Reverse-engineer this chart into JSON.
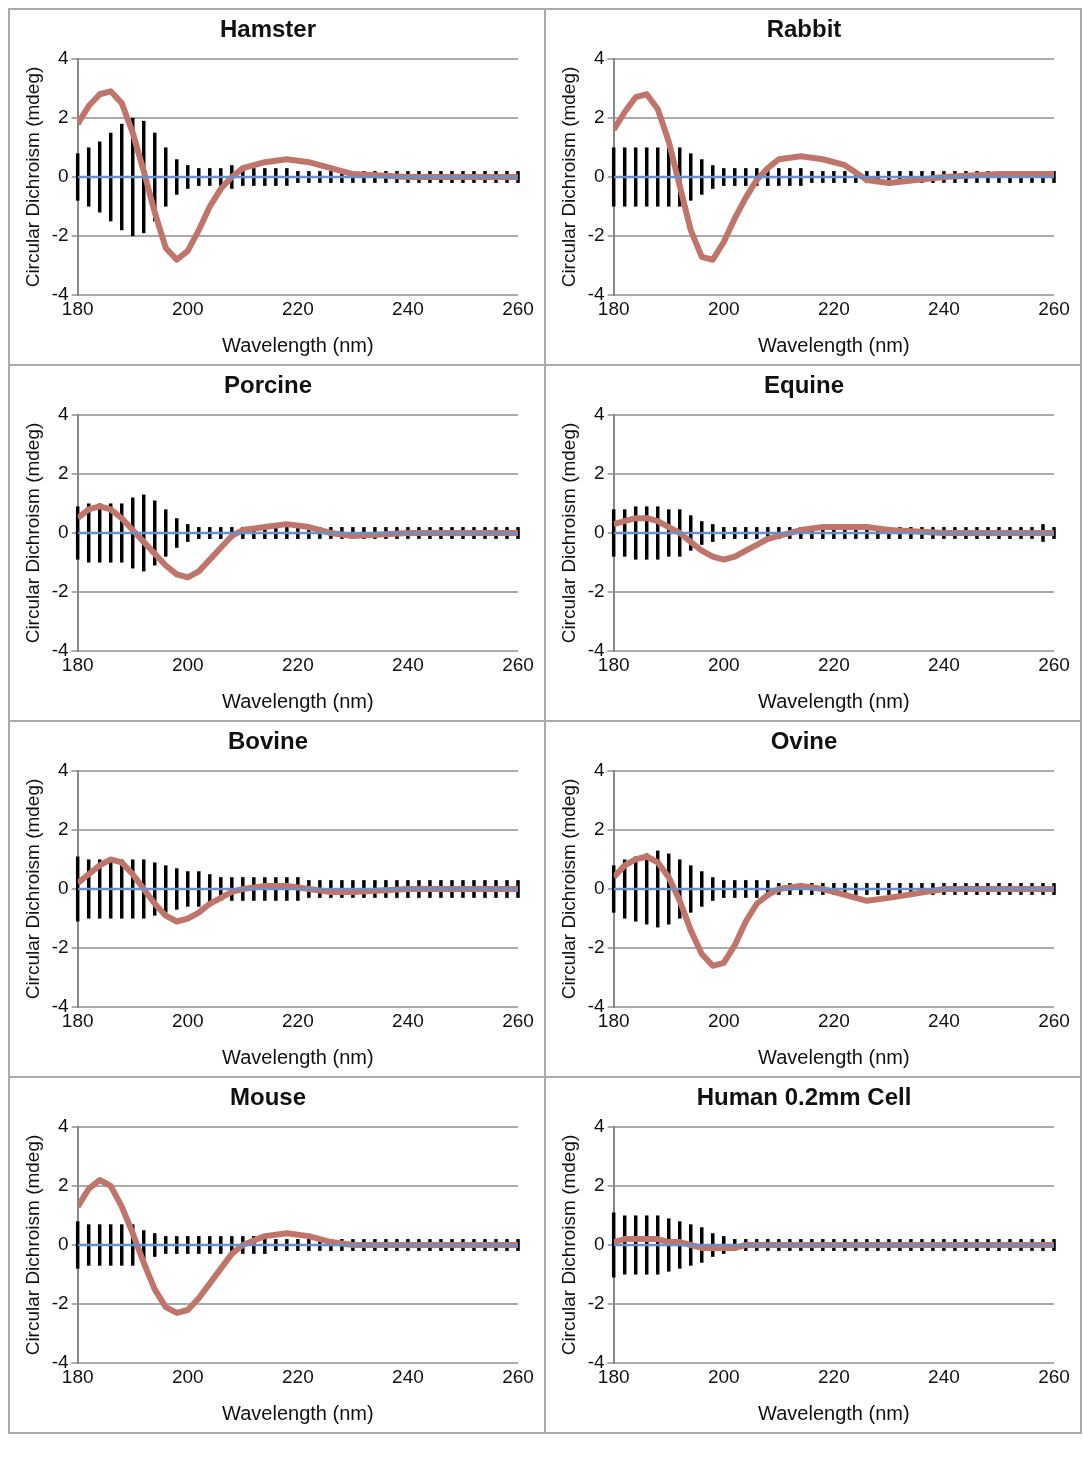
{
  "chart_data": [
    {
      "type": "line",
      "title": "Hamster",
      "xlabel": "Wavelength (nm)",
      "ylabel": "Circular Dichroism (mdeg)",
      "xlim": [
        180,
        260
      ],
      "xticks": [
        180,
        200,
        220,
        240,
        260
      ],
      "ylim": [
        -4,
        4
      ],
      "yticks": [
        -4,
        -2,
        0,
        2,
        4
      ],
      "grid": "y",
      "series": [
        {
          "color": "#c0756a",
          "x": [
            180,
            182,
            184,
            186,
            188,
            190,
            192,
            194,
            196,
            198,
            200,
            202,
            204,
            206,
            208,
            210,
            214,
            218,
            222,
            226,
            230,
            240,
            250,
            260
          ],
          "values": [
            1.8,
            2.4,
            2.8,
            2.9,
            2.5,
            1.5,
            0.2,
            -1.2,
            -2.4,
            -2.8,
            -2.5,
            -1.8,
            -1.0,
            -0.4,
            0,
            0.3,
            0.5,
            0.6,
            0.5,
            0.3,
            0.1,
            0,
            0,
            0
          ]
        },
        {
          "color": "#6d8fc7",
          "x": [
            180,
            182,
            184,
            186,
            188,
            190,
            192,
            194,
            196,
            198,
            200,
            202,
            204,
            206,
            208,
            210,
            212,
            214,
            216,
            218,
            220,
            222,
            224,
            226,
            228,
            230,
            232,
            234,
            236,
            238,
            240,
            242,
            244,
            246,
            248,
            250,
            252,
            254,
            256,
            258,
            260
          ],
          "values": [
            0,
            0,
            0,
            0,
            0,
            0,
            0,
            0,
            0,
            0,
            0,
            0,
            0,
            0,
            0,
            0,
            0,
            0,
            0,
            0,
            0,
            0,
            0,
            0,
            0,
            0,
            0,
            0,
            0,
            0,
            0,
            0,
            0,
            0,
            0,
            0,
            0,
            0,
            0,
            0,
            0
          ],
          "errors": [
            0.8,
            1.0,
            1.2,
            1.5,
            1.8,
            2.0,
            1.9,
            1.5,
            1.0,
            0.6,
            0.4,
            0.3,
            0.3,
            0.3,
            0.4,
            0.3,
            0.3,
            0.3,
            0.3,
            0.3,
            0.2,
            0.2,
            0.2,
            0.2,
            0.2,
            0.2,
            0.2,
            0.2,
            0.2,
            0.2,
            0.2,
            0.2,
            0.2,
            0.2,
            0.2,
            0.2,
            0.2,
            0.2,
            0.2,
            0.2,
            0.2
          ]
        }
      ]
    },
    {
      "type": "line",
      "title": "Rabbit",
      "xlabel": "Wavelength (nm)",
      "ylabel": "Circular Dichroism (mdeg)",
      "xlim": [
        180,
        260
      ],
      "xticks": [
        180,
        200,
        220,
        240,
        260
      ],
      "ylim": [
        -4,
        4
      ],
      "yticks": [
        -4,
        -2,
        0,
        2,
        4
      ],
      "grid": "y",
      "series": [
        {
          "color": "#c0756a",
          "x": [
            180,
            182,
            184,
            186,
            188,
            190,
            192,
            194,
            196,
            198,
            200,
            202,
            204,
            206,
            208,
            210,
            214,
            218,
            222,
            226,
            230,
            240,
            250,
            260
          ],
          "values": [
            1.6,
            2.2,
            2.7,
            2.8,
            2.3,
            1.2,
            -0.3,
            -1.8,
            -2.7,
            -2.8,
            -2.2,
            -1.4,
            -0.7,
            -0.1,
            0.3,
            0.6,
            0.7,
            0.6,
            0.4,
            -0.1,
            -0.2,
            0,
            0.1,
            0.1
          ]
        },
        {
          "color": "#6d8fc7",
          "x": [
            180,
            182,
            184,
            186,
            188,
            190,
            192,
            194,
            196,
            198,
            200,
            202,
            204,
            206,
            208,
            210,
            212,
            214,
            216,
            218,
            220,
            222,
            224,
            226,
            228,
            230,
            232,
            234,
            236,
            238,
            240,
            242,
            244,
            246,
            248,
            250,
            252,
            254,
            256,
            258,
            260
          ],
          "values": [
            0,
            0,
            0,
            0,
            0,
            0,
            0,
            0,
            0,
            0,
            0,
            0,
            0,
            0,
            0,
            0,
            0,
            0,
            0,
            0,
            0,
            0,
            0,
            0,
            0,
            0,
            0,
            0,
            0,
            0,
            0,
            0,
            0,
            0,
            0,
            0,
            0,
            0,
            0,
            0,
            0
          ],
          "errors": [
            1.0,
            1.0,
            1.0,
            1.0,
            1.0,
            1.0,
            1.0,
            0.8,
            0.6,
            0.4,
            0.3,
            0.3,
            0.3,
            0.3,
            0.3,
            0.3,
            0.3,
            0.3,
            0.2,
            0.2,
            0.2,
            0.2,
            0.2,
            0.2,
            0.2,
            0.2,
            0.2,
            0.2,
            0.2,
            0.2,
            0.2,
            0.2,
            0.2,
            0.2,
            0.2,
            0.2,
            0.2,
            0.2,
            0.2,
            0.2,
            0.2
          ]
        }
      ]
    },
    {
      "type": "line",
      "title": "Porcine",
      "xlabel": "Wavelength (nm)",
      "ylabel": "Circular Dichroism (mdeg)",
      "xlim": [
        180,
        260
      ],
      "xticks": [
        180,
        200,
        220,
        240,
        260
      ],
      "ylim": [
        -4,
        4
      ],
      "yticks": [
        -4,
        -2,
        0,
        2,
        4
      ],
      "grid": "y",
      "series": [
        {
          "color": "#c0756a",
          "x": [
            180,
            182,
            184,
            186,
            188,
            190,
            192,
            194,
            196,
            198,
            200,
            202,
            204,
            206,
            208,
            210,
            214,
            218,
            222,
            226,
            230,
            240,
            250,
            260
          ],
          "values": [
            0.5,
            0.8,
            0.9,
            0.8,
            0.5,
            0.1,
            -0.3,
            -0.7,
            -1.1,
            -1.4,
            -1.5,
            -1.3,
            -0.9,
            -0.5,
            -0.1,
            0.1,
            0.2,
            0.3,
            0.2,
            0,
            -0.1,
            0,
            0,
            0
          ]
        },
        {
          "color": "#6d8fc7",
          "x": [
            180,
            182,
            184,
            186,
            188,
            190,
            192,
            194,
            196,
            198,
            200,
            202,
            204,
            206,
            208,
            210,
            212,
            214,
            216,
            218,
            220,
            222,
            224,
            226,
            228,
            230,
            232,
            234,
            236,
            238,
            240,
            242,
            244,
            246,
            248,
            250,
            252,
            254,
            256,
            258,
            260
          ],
          "values": [
            0,
            0,
            0,
            0,
            0,
            0,
            0,
            0,
            0,
            0,
            0,
            0,
            0,
            0,
            0,
            0,
            0,
            0,
            0,
            0,
            0,
            0,
            0,
            0,
            0,
            0,
            0,
            0,
            0,
            0,
            0,
            0,
            0,
            0,
            0,
            0,
            0,
            0,
            0,
            0,
            0
          ],
          "errors": [
            0.9,
            1.0,
            1.0,
            1.0,
            1.0,
            1.2,
            1.3,
            1.1,
            0.8,
            0.5,
            0.3,
            0.2,
            0.2,
            0.2,
            0.2,
            0.2,
            0.2,
            0.2,
            0.2,
            0.2,
            0.2,
            0.2,
            0.2,
            0.2,
            0.2,
            0.2,
            0.2,
            0.2,
            0.2,
            0.2,
            0.2,
            0.2,
            0.2,
            0.2,
            0.2,
            0.2,
            0.2,
            0.2,
            0.2,
            0.2,
            0.2
          ]
        }
      ]
    },
    {
      "type": "line",
      "title": "Equine",
      "xlabel": "Wavelength (nm)",
      "ylabel": "Circular Dichroism (mdeg)",
      "xlim": [
        180,
        260
      ],
      "xticks": [
        180,
        200,
        220,
        240,
        260
      ],
      "ylim": [
        -4,
        4
      ],
      "yticks": [
        -4,
        -2,
        0,
        2,
        4
      ],
      "grid": "y",
      "series": [
        {
          "color": "#c0756a",
          "x": [
            180,
            182,
            184,
            186,
            188,
            190,
            192,
            194,
            196,
            198,
            200,
            202,
            204,
            206,
            208,
            210,
            214,
            218,
            222,
            226,
            230,
            240,
            250,
            260
          ],
          "values": [
            0.3,
            0.4,
            0.5,
            0.5,
            0.4,
            0.2,
            0,
            -0.3,
            -0.6,
            -0.8,
            -0.9,
            -0.8,
            -0.6,
            -0.4,
            -0.2,
            -0.1,
            0.1,
            0.2,
            0.2,
            0.2,
            0.1,
            0,
            0,
            0
          ]
        },
        {
          "color": "#6d8fc7",
          "x": [
            180,
            182,
            184,
            186,
            188,
            190,
            192,
            194,
            196,
            198,
            200,
            202,
            204,
            206,
            208,
            210,
            212,
            214,
            216,
            218,
            220,
            222,
            224,
            226,
            228,
            230,
            232,
            234,
            236,
            238,
            240,
            242,
            244,
            246,
            248,
            250,
            252,
            254,
            256,
            258,
            260
          ],
          "values": [
            0,
            0,
            0,
            0,
            0,
            0,
            0,
            0,
            0,
            0,
            0,
            0,
            0,
            0,
            0,
            0,
            0,
            0,
            0,
            0,
            0,
            0,
            0,
            0,
            0,
            0,
            0,
            0,
            0,
            0,
            0,
            0,
            0,
            0,
            0,
            0,
            0,
            0,
            0,
            0,
            0
          ],
          "errors": [
            0.8,
            0.8,
            0.9,
            0.9,
            0.9,
            0.8,
            0.8,
            0.6,
            0.4,
            0.3,
            0.2,
            0.2,
            0.2,
            0.2,
            0.2,
            0.2,
            0.2,
            0.2,
            0.2,
            0.2,
            0.2,
            0.2,
            0.2,
            0.2,
            0.2,
            0.2,
            0.2,
            0.2,
            0.2,
            0.2,
            0.2,
            0.2,
            0.2,
            0.2,
            0.2,
            0.2,
            0.2,
            0.2,
            0.2,
            0.3,
            0.2
          ]
        }
      ]
    },
    {
      "type": "line",
      "title": "Bovine",
      "xlabel": "Wavelength (nm)",
      "ylabel": "Circular Dichroism (mdeg)",
      "xlim": [
        180,
        260
      ],
      "xticks": [
        180,
        200,
        220,
        240,
        260
      ],
      "ylim": [
        -4,
        4
      ],
      "yticks": [
        -4,
        -2,
        0,
        2,
        4
      ],
      "grid": "y",
      "series": [
        {
          "color": "#c0756a",
          "x": [
            180,
            182,
            184,
            186,
            188,
            190,
            192,
            194,
            196,
            198,
            200,
            202,
            204,
            206,
            208,
            210,
            214,
            218,
            222,
            226,
            230,
            240,
            250,
            260
          ],
          "values": [
            0.2,
            0.5,
            0.8,
            1.0,
            0.9,
            0.5,
            0,
            -0.5,
            -0.9,
            -1.1,
            -1.0,
            -0.8,
            -0.5,
            -0.3,
            -0.1,
            0,
            0.1,
            0.1,
            0,
            -0.1,
            -0.1,
            0,
            0,
            0
          ]
        },
        {
          "color": "#6d8fc7",
          "x": [
            180,
            182,
            184,
            186,
            188,
            190,
            192,
            194,
            196,
            198,
            200,
            202,
            204,
            206,
            208,
            210,
            212,
            214,
            216,
            218,
            220,
            222,
            224,
            226,
            228,
            230,
            232,
            234,
            236,
            238,
            240,
            242,
            244,
            246,
            248,
            250,
            252,
            254,
            256,
            258,
            260
          ],
          "values": [
            0,
            0,
            0,
            0,
            0,
            0,
            0,
            0,
            0,
            0,
            0,
            0,
            0,
            0,
            0,
            0,
            0,
            0,
            0,
            0,
            0,
            0,
            0,
            0,
            0,
            0,
            0,
            0,
            0,
            0,
            0,
            0,
            0,
            0,
            0,
            0,
            0,
            0,
            0,
            0,
            0
          ],
          "errors": [
            1.1,
            1.0,
            1.0,
            1.0,
            1.0,
            1.0,
            1.0,
            0.9,
            0.8,
            0.7,
            0.6,
            0.6,
            0.5,
            0.4,
            0.4,
            0.4,
            0.4,
            0.4,
            0.4,
            0.4,
            0.4,
            0.3,
            0.3,
            0.3,
            0.3,
            0.3,
            0.3,
            0.3,
            0.3,
            0.3,
            0.3,
            0.3,
            0.3,
            0.3,
            0.3,
            0.3,
            0.3,
            0.3,
            0.3,
            0.3,
            0.3
          ]
        }
      ]
    },
    {
      "type": "line",
      "title": "Ovine",
      "xlabel": "Wavelength (nm)",
      "ylabel": "Circular Dichroism (mdeg)",
      "xlim": [
        180,
        260
      ],
      "xticks": [
        180,
        200,
        220,
        240,
        260
      ],
      "ylim": [
        -4,
        4
      ],
      "yticks": [
        -4,
        -2,
        0,
        2,
        4
      ],
      "grid": "y",
      "series": [
        {
          "color": "#c0756a",
          "x": [
            180,
            182,
            184,
            186,
            188,
            190,
            192,
            194,
            196,
            198,
            200,
            202,
            204,
            206,
            208,
            210,
            214,
            218,
            222,
            226,
            230,
            240,
            250,
            260
          ],
          "values": [
            0.4,
            0.8,
            1.0,
            1.1,
            0.9,
            0.4,
            -0.4,
            -1.4,
            -2.2,
            -2.6,
            -2.5,
            -1.9,
            -1.1,
            -0.5,
            -0.2,
            0,
            0.1,
            0,
            -0.2,
            -0.4,
            -0.3,
            0,
            0,
            0
          ]
        },
        {
          "color": "#6d8fc7",
          "x": [
            180,
            182,
            184,
            186,
            188,
            190,
            192,
            194,
            196,
            198,
            200,
            202,
            204,
            206,
            208,
            210,
            212,
            214,
            216,
            218,
            220,
            222,
            224,
            226,
            228,
            230,
            232,
            234,
            236,
            238,
            240,
            242,
            244,
            246,
            248,
            250,
            252,
            254,
            256,
            258,
            260
          ],
          "values": [
            0,
            0,
            0,
            0,
            0,
            0,
            0,
            0,
            0,
            0,
            0,
            0,
            0,
            0,
            0,
            0,
            0,
            0,
            0,
            0,
            0,
            0,
            0,
            0,
            0,
            0,
            0,
            0,
            0,
            0,
            0,
            0,
            0,
            0,
            0,
            0,
            0,
            0,
            0,
            0,
            0
          ],
          "errors": [
            0.8,
            1.0,
            1.1,
            1.2,
            1.3,
            1.2,
            1.0,
            0.8,
            0.6,
            0.4,
            0.3,
            0.3,
            0.3,
            0.3,
            0.3,
            0.2,
            0.2,
            0.2,
            0.2,
            0.2,
            0.2,
            0.2,
            0.2,
            0.2,
            0.2,
            0.2,
            0.2,
            0.2,
            0.2,
            0.2,
            0.2,
            0.2,
            0.2,
            0.2,
            0.2,
            0.2,
            0.2,
            0.2,
            0.2,
            0.2,
            0.2
          ]
        }
      ]
    },
    {
      "type": "line",
      "title": "Mouse",
      "xlabel": "Wavelength (nm)",
      "ylabel": "Circular Dichroism (mdeg)",
      "xlim": [
        180,
        260
      ],
      "xticks": [
        180,
        200,
        220,
        240,
        260
      ],
      "ylim": [
        -4,
        4
      ],
      "yticks": [
        -4,
        -2,
        0,
        2,
        4
      ],
      "grid": "y",
      "series": [
        {
          "color": "#c0756a",
          "x": [
            180,
            182,
            184,
            186,
            188,
            190,
            192,
            194,
            196,
            198,
            200,
            202,
            204,
            206,
            208,
            210,
            214,
            218,
            222,
            226,
            230,
            240,
            250,
            260
          ],
          "values": [
            1.3,
            1.9,
            2.2,
            2.0,
            1.3,
            0.4,
            -0.6,
            -1.5,
            -2.1,
            -2.3,
            -2.2,
            -1.8,
            -1.3,
            -0.8,
            -0.3,
            0,
            0.3,
            0.4,
            0.3,
            0.1,
            0,
            0,
            0,
            0
          ]
        },
        {
          "color": "#6d8fc7",
          "x": [
            180,
            182,
            184,
            186,
            188,
            190,
            192,
            194,
            196,
            198,
            200,
            202,
            204,
            206,
            208,
            210,
            212,
            214,
            216,
            218,
            220,
            222,
            224,
            226,
            228,
            230,
            232,
            234,
            236,
            238,
            240,
            242,
            244,
            246,
            248,
            250,
            252,
            254,
            256,
            258,
            260
          ],
          "values": [
            0,
            0,
            0,
            0,
            0,
            0,
            0,
            0,
            0,
            0,
            0,
            0,
            0,
            0,
            0,
            0,
            0,
            0,
            0,
            0,
            0,
            0,
            0,
            0,
            0,
            0,
            0,
            0,
            0,
            0,
            0,
            0,
            0,
            0,
            0,
            0,
            0,
            0,
            0,
            0,
            0
          ],
          "errors": [
            0.8,
            0.7,
            0.7,
            0.7,
            0.7,
            0.7,
            0.5,
            0.4,
            0.3,
            0.3,
            0.3,
            0.3,
            0.3,
            0.3,
            0.3,
            0.3,
            0.3,
            0.3,
            0.2,
            0.2,
            0.2,
            0.2,
            0.2,
            0.2,
            0.2,
            0.2,
            0.2,
            0.2,
            0.2,
            0.2,
            0.2,
            0.2,
            0.2,
            0.2,
            0.2,
            0.2,
            0.2,
            0.2,
            0.2,
            0.2,
            0.2
          ]
        }
      ]
    },
    {
      "type": "line",
      "title": "Human 0.2mm Cell",
      "xlabel": "Wavelength (nm)",
      "ylabel": "Circular Dichroism (mdeg)",
      "xlim": [
        180,
        260
      ],
      "xticks": [
        180,
        200,
        220,
        240,
        260
      ],
      "ylim": [
        -4,
        4
      ],
      "yticks": [
        -4,
        -2,
        0,
        2,
        4
      ],
      "grid": "y",
      "series": [
        {
          "color": "#c0756a",
          "x": [
            180,
            182,
            184,
            186,
            188,
            190,
            192,
            194,
            196,
            198,
            200,
            202,
            204,
            206,
            208,
            210,
            214,
            218,
            222,
            226,
            230,
            240,
            250,
            260
          ],
          "values": [
            0.1,
            0.2,
            0.2,
            0.2,
            0.2,
            0.1,
            0.1,
            0,
            -0.1,
            -0.1,
            -0.1,
            -0.1,
            0,
            0,
            0,
            0,
            0,
            0,
            0,
            0,
            0,
            0,
            0,
            0
          ]
        },
        {
          "color": "#6d8fc7",
          "x": [
            180,
            182,
            184,
            186,
            188,
            190,
            192,
            194,
            196,
            198,
            200,
            202,
            204,
            206,
            208,
            210,
            212,
            214,
            216,
            218,
            220,
            222,
            224,
            226,
            228,
            230,
            232,
            234,
            236,
            238,
            240,
            242,
            244,
            246,
            248,
            250,
            252,
            254,
            256,
            258,
            260
          ],
          "values": [
            0,
            0,
            0,
            0,
            0,
            0,
            0,
            0,
            0,
            0,
            0,
            0,
            0,
            0,
            0,
            0,
            0,
            0,
            0,
            0,
            0,
            0,
            0,
            0,
            0,
            0,
            0,
            0,
            0,
            0,
            0,
            0,
            0,
            0,
            0,
            0,
            0,
            0,
            0,
            0,
            0
          ],
          "errors": [
            1.1,
            1.0,
            1.0,
            1.0,
            1.0,
            0.9,
            0.8,
            0.7,
            0.6,
            0.4,
            0.3,
            0.2,
            0.2,
            0.2,
            0.2,
            0.2,
            0.2,
            0.2,
            0.2,
            0.2,
            0.2,
            0.2,
            0.2,
            0.2,
            0.2,
            0.2,
            0.2,
            0.2,
            0.2,
            0.2,
            0.2,
            0.2,
            0.2,
            0.2,
            0.2,
            0.2,
            0.2,
            0.2,
            0.2,
            0.2,
            0.2
          ]
        }
      ]
    }
  ]
}
